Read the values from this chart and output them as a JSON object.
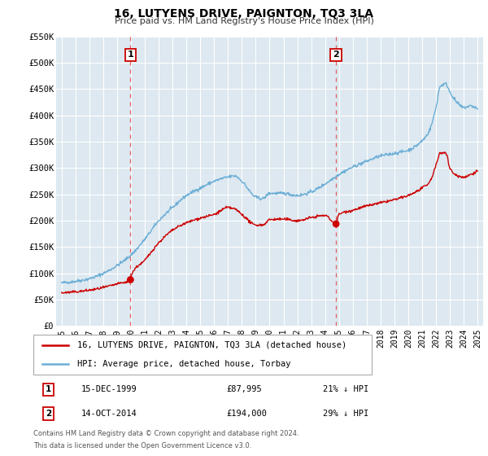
{
  "title": "16, LUTYENS DRIVE, PAIGNTON, TQ3 3LA",
  "subtitle": "Price paid vs. HM Land Registry's House Price Index (HPI)",
  "ylim": [
    0,
    550000
  ],
  "xlim": [
    1994.6,
    2025.4
  ],
  "yticks": [
    0,
    50000,
    100000,
    150000,
    200000,
    250000,
    300000,
    350000,
    400000,
    450000,
    500000,
    550000
  ],
  "ytick_labels": [
    "£0",
    "£50K",
    "£100K",
    "£150K",
    "£200K",
    "£250K",
    "£300K",
    "£350K",
    "£400K",
    "£450K",
    "£500K",
    "£550K"
  ],
  "sale1_x": 1999.96,
  "sale1_y": 87995,
  "sale1_label": "1",
  "sale1_date": "15-DEC-1999",
  "sale1_price": "£87,995",
  "sale1_hpi": "21% ↓ HPI",
  "sale2_x": 2014.79,
  "sale2_y": 194000,
  "sale2_label": "2",
  "sale2_date": "14-OCT-2014",
  "sale2_price": "£194,000",
  "sale2_hpi": "29% ↓ HPI",
  "hpi_color": "#6baed6",
  "price_color": "#cc0000",
  "vline_color": "#e06060",
  "bg_color": "#dde8f0",
  "grid_color": "#ffffff",
  "legend_label_price": "16, LUTYENS DRIVE, PAIGNTON, TQ3 3LA (detached house)",
  "legend_label_hpi": "HPI: Average price, detached house, Torbay",
  "footnote1": "Contains HM Land Registry data © Crown copyright and database right 2024.",
  "footnote2": "This data is licensed under the Open Government Licence v3.0.",
  "xticks": [
    1995,
    1996,
    1997,
    1998,
    1999,
    2000,
    2001,
    2002,
    2003,
    2004,
    2005,
    2006,
    2007,
    2008,
    2009,
    2010,
    2011,
    2012,
    2013,
    2014,
    2015,
    2016,
    2017,
    2018,
    2019,
    2020,
    2021,
    2022,
    2023,
    2024,
    2025
  ],
  "hpi_kx": [
    1995,
    1996,
    1997,
    1998,
    1999,
    2000,
    2001,
    2002,
    2003,
    2004,
    2005,
    2006,
    2007,
    2007.5,
    2008,
    2009,
    2009.5,
    2010,
    2011,
    2012,
    2013,
    2014,
    2015,
    2016,
    2017,
    2018,
    2019,
    2020,
    2021,
    2021.5,
    2022,
    2022.3,
    2022.7,
    2023,
    2023.5,
    2024,
    2024.5,
    2025
  ],
  "hpi_ky": [
    82000,
    85000,
    90000,
    100000,
    115000,
    135000,
    165000,
    200000,
    225000,
    248000,
    262000,
    275000,
    283000,
    285000,
    275000,
    245000,
    242000,
    252000,
    252000,
    248000,
    255000,
    270000,
    288000,
    302000,
    313000,
    323000,
    328000,
    334000,
    352000,
    370000,
    415000,
    455000,
    460000,
    445000,
    425000,
    415000,
    418000,
    412000
  ],
  "price_kx": [
    1995,
    1996,
    1997,
    1998,
    1999,
    1999.96,
    2000,
    2001,
    2002,
    2003,
    2004,
    2005,
    2006,
    2007,
    2007.5,
    2008,
    2009,
    2009.5,
    2010,
    2011,
    2012,
    2013,
    2014,
    2014.79,
    2015,
    2016,
    2017,
    2018,
    2019,
    2020,
    2021,
    2021.5,
    2022,
    2022.3,
    2022.7,
    2023,
    2023.5,
    2024,
    2024.5,
    2025
  ],
  "price_ky": [
    63000,
    65000,
    68000,
    73000,
    80000,
    87995,
    95000,
    125000,
    158000,
    182000,
    196000,
    205000,
    212000,
    225000,
    222000,
    212000,
    192000,
    192000,
    202000,
    203000,
    200000,
    206000,
    210000,
    194000,
    212000,
    220000,
    228000,
    234000,
    240000,
    248000,
    262000,
    272000,
    305000,
    328000,
    330000,
    300000,
    286000,
    283000,
    288000,
    295000
  ]
}
